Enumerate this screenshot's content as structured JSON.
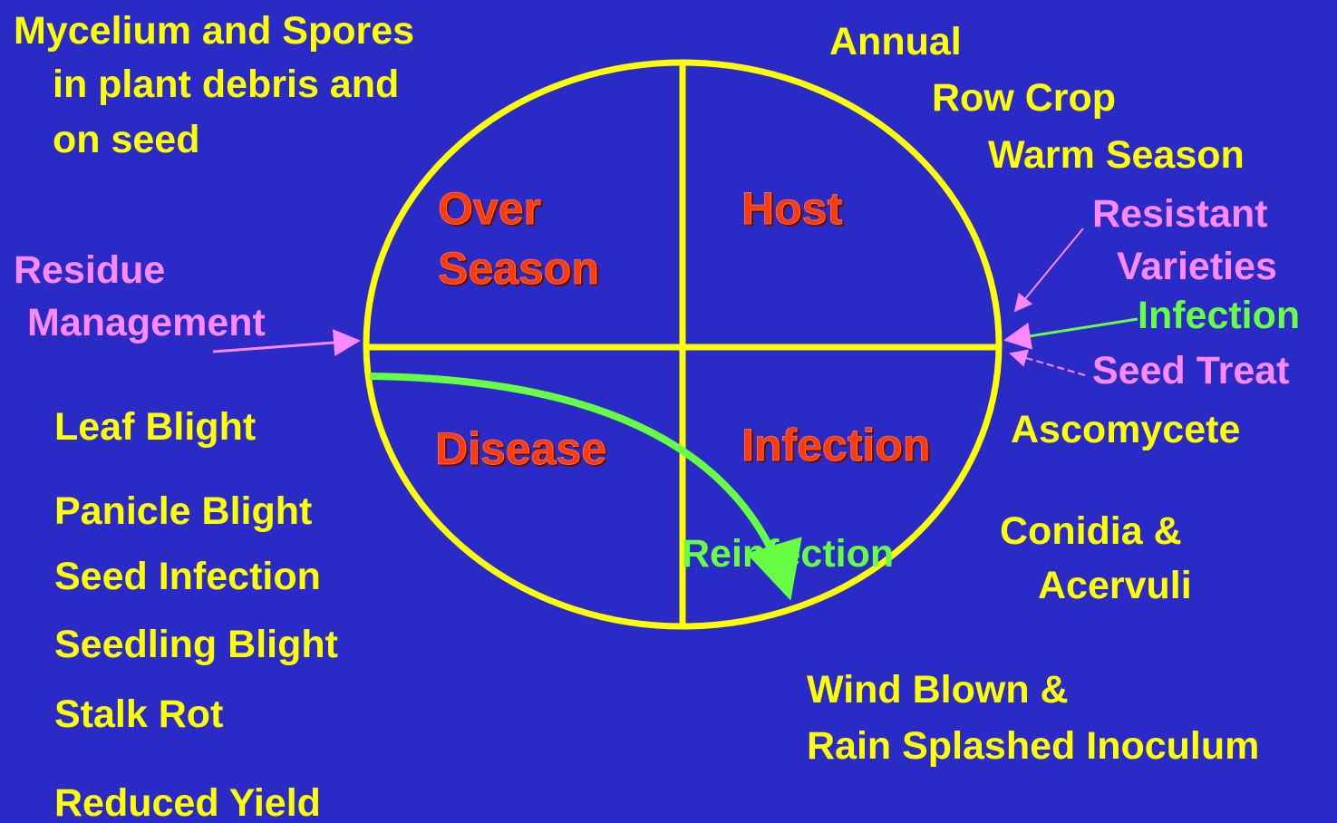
{
  "overseason_note": [
    "Mycelium and Spores",
    "in plant debris and",
    "on seed"
  ],
  "quadrants": {
    "over_season": [
      "Over",
      "Season"
    ],
    "host": "Host",
    "disease": "Disease",
    "infection": "Infection"
  },
  "reinfection": "Reinfection",
  "host_traits": [
    "Annual",
    "Row Crop",
    "Warm Season"
  ],
  "controls": {
    "residue_management": [
      "Residue",
      "Management"
    ],
    "resistant_varieties": [
      "Resistant",
      "Varieties"
    ],
    "infection": "Infection",
    "seed_treat": "Seed Treat"
  },
  "pathogen": "Ascomycete",
  "spores": [
    "Conidia &",
    "Acervuli"
  ],
  "dispersal": [
    "Wind Blown &",
    "Rain Splashed Inoculum"
  ],
  "symptoms": [
    "Leaf Blight",
    "Panicle Blight",
    "Seed Infection",
    "Seedling Blight",
    "Stalk Rot",
    "Reduced Yield"
  ]
}
